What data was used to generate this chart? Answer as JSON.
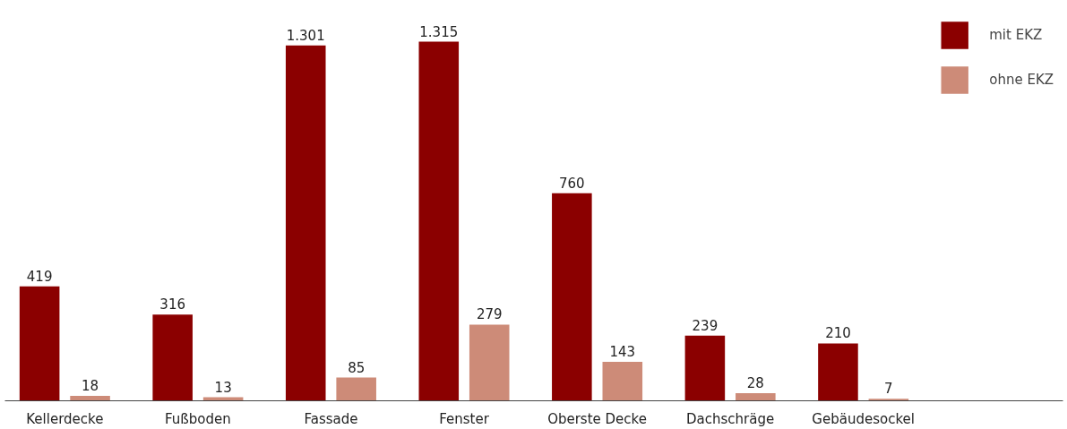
{
  "chart_data": {
    "type": "bar",
    "categories": [
      "Kellerdecke",
      "Fußboden",
      "Fassade",
      "Fenster",
      "Oberste Decke",
      "Dachschräge",
      "Gebäudesockel"
    ],
    "series": [
      {
        "name": "mit EKZ",
        "color": "#8b0000",
        "values": [
          419,
          316,
          1301,
          1315,
          760,
          239,
          210
        ],
        "value_labels": [
          "419",
          "316",
          "1.301",
          "1.315",
          "760",
          "239",
          "210"
        ]
      },
      {
        "name": "ohne EKZ",
        "color": "#cd8b78",
        "values": [
          18,
          13,
          85,
          279,
          143,
          28,
          7
        ],
        "value_labels": [
          "18",
          "13",
          "85",
          "279",
          "143",
          "28",
          "7"
        ]
      }
    ],
    "legend": "top right",
    "grid": false
  }
}
